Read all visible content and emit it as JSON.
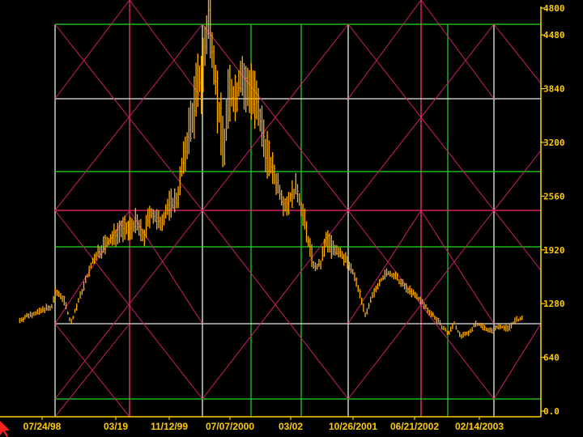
{
  "chart_data": {
    "type": "bar",
    "subtype": "ohlc-price-bars",
    "title": "",
    "xlabel": "",
    "ylabel": "",
    "ylim": [
      0,
      4800
    ],
    "y_ticks": [
      0,
      640,
      1280,
      1920,
      2560,
      3200,
      3840,
      4480,
      4800
    ],
    "y_tick_labels": [
      "0.0",
      "640",
      "1280",
      "1920",
      "2560",
      "3200",
      "3840",
      "4480",
      "4800"
    ],
    "x_tick_labels": [
      "07/24/98",
      "03/19",
      "11/12/99",
      "07/07/2000",
      "03/02",
      "10/26/2001",
      "06/21/2002",
      "02/14/2003"
    ],
    "grid": true,
    "overlay": "gann square grid with diagonal angle lines",
    "colors": {
      "background": "#000000",
      "bars": "#ffb000",
      "axis": "#ffcc00",
      "grid_green": "#22dd22",
      "grid_white": "#e8e8e8",
      "grid_magenta": "#ff2a6a",
      "diagonal": "#d0206a"
    },
    "price_path": [
      [
        1998.2,
        1080
      ],
      [
        1998.3,
        1150
      ],
      [
        1998.4,
        1180
      ],
      [
        1998.47,
        1230
      ],
      [
        1998.52,
        1210
      ],
      [
        1998.56,
        1420
      ],
      [
        1998.62,
        1380
      ],
      [
        1998.66,
        1300
      ],
      [
        1998.72,
        1040
      ],
      [
        1998.78,
        1250
      ],
      [
        1998.86,
        1520
      ],
      [
        1998.95,
        1800
      ],
      [
        1999.04,
        1950
      ],
      [
        1999.14,
        2050
      ],
      [
        1999.22,
        2180
      ],
      [
        1999.3,
        2150
      ],
      [
        1999.38,
        2250
      ],
      [
        1999.46,
        2060
      ],
      [
        1999.53,
        2380
      ],
      [
        1999.62,
        2220
      ],
      [
        1999.72,
        2450
      ],
      [
        1999.8,
        2520
      ],
      [
        1999.86,
        2950
      ],
      [
        1999.92,
        3300
      ],
      [
        2000.0,
        3800
      ],
      [
        2000.06,
        4050
      ],
      [
        2000.12,
        4650
      ],
      [
        2000.17,
        4300
      ],
      [
        2000.22,
        3600
      ],
      [
        2000.28,
        3150
      ],
      [
        2000.33,
        3800
      ],
      [
        2000.4,
        3720
      ],
      [
        2000.45,
        4050
      ],
      [
        2000.5,
        3780
      ],
      [
        2000.55,
        3900
      ],
      [
        2000.6,
        3650
      ],
      [
        2000.66,
        3350
      ],
      [
        2000.72,
        3050
      ],
      [
        2000.78,
        2850
      ],
      [
        2000.84,
        2650
      ],
      [
        2000.9,
        2450
      ],
      [
        2000.96,
        2550
      ],
      [
        2001.02,
        2650
      ],
      [
        2001.08,
        2350
      ],
      [
        2001.14,
        2000
      ],
      [
        2001.2,
        1700
      ],
      [
        2001.26,
        1750
      ],
      [
        2001.32,
        2050
      ],
      [
        2001.38,
        1950
      ],
      [
        2001.44,
        1900
      ],
      [
        2001.52,
        1800
      ],
      [
        2001.6,
        1620
      ],
      [
        2001.66,
        1400
      ],
      [
        2001.72,
        1130
      ],
      [
        2001.78,
        1350
      ],
      [
        2001.86,
        1550
      ],
      [
        2001.94,
        1650
      ],
      [
        2002.02,
        1600
      ],
      [
        2002.1,
        1500
      ],
      [
        2002.18,
        1420
      ],
      [
        2002.26,
        1340
      ],
      [
        2002.34,
        1220
      ],
      [
        2002.42,
        1120
      ],
      [
        2002.5,
        1000
      ],
      [
        2002.56,
        920
      ],
      [
        2002.62,
        1050
      ],
      [
        2002.68,
        890
      ],
      [
        2002.76,
        920
      ],
      [
        2002.84,
        1050
      ],
      [
        2002.92,
        1000
      ],
      [
        2003.0,
        950
      ],
      [
        2003.08,
        1020
      ],
      [
        2003.16,
        980
      ],
      [
        2003.24,
        1080
      ],
      [
        2003.32,
        1100
      ]
    ]
  }
}
